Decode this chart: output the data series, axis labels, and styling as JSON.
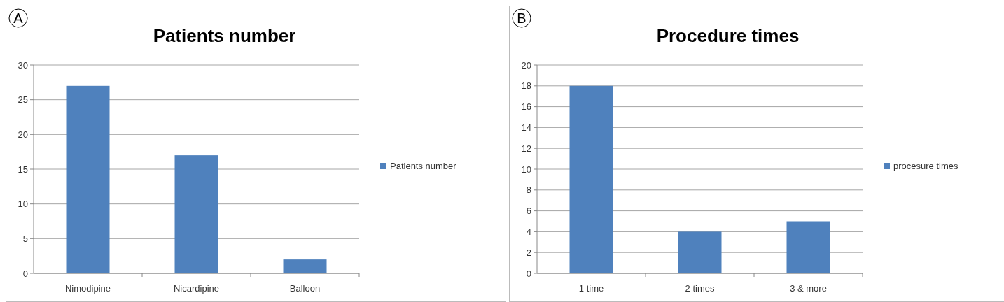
{
  "chart_data": [
    {
      "type": "bar",
      "title": "Patients number",
      "annotations": [
        "A"
      ],
      "categories": [
        "Nimodipine",
        "Nicardipine",
        "Balloon"
      ],
      "series": [
        {
          "name": "Patients number",
          "color": "#4f81bd",
          "values": [
            27,
            17,
            2
          ]
        }
      ],
      "ylim": [
        0,
        30
      ],
      "yticks": [
        0,
        5,
        10,
        15,
        20,
        25,
        30
      ],
      "grid": "y",
      "legend": "right"
    },
    {
      "type": "bar",
      "title": "Procedure times",
      "annotations": [
        "B"
      ],
      "categories": [
        "1 time",
        "2 times",
        "3 & more"
      ],
      "series": [
        {
          "name": "procesure times",
          "color": "#4f81bd",
          "values": [
            18,
            4,
            5
          ]
        }
      ],
      "ylim": [
        0,
        20
      ],
      "yticks": [
        0,
        2,
        4,
        6,
        8,
        10,
        12,
        14,
        16,
        18,
        20
      ],
      "grid": "y",
      "legend": "right"
    }
  ]
}
